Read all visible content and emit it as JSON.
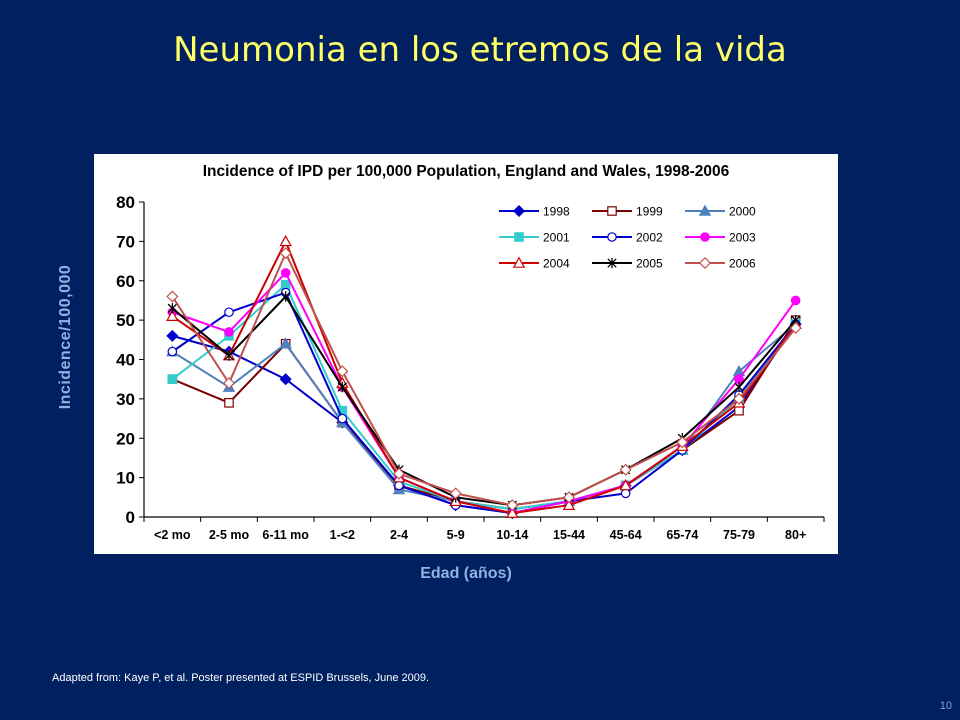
{
  "slide": {
    "title": "Neumonia en los etremos de la vida",
    "footnote": "Adapted from: Kaye P, et al. Poster presented at ESPID Brussels, June 2009.",
    "page_number": "10",
    "background_color": "#002060",
    "title_color": "#FFFF66",
    "label_color": "#8EB4E3"
  },
  "chart_data": {
    "type": "line",
    "title": "Incidence of IPD per 100,000 Population, England and Wales, 1998-2006",
    "xlabel": "Edad (años)",
    "ylabel": "Incidence/100,000",
    "ylim": [
      0,
      80
    ],
    "yticks": [
      0,
      10,
      20,
      30,
      40,
      50,
      60,
      70,
      80
    ],
    "grid": false,
    "legend_position": "top-right",
    "categories": [
      "<2 mo",
      "2-5 mo",
      "6-11 mo",
      "1-<2",
      "2-4",
      "5-9",
      "10-14",
      "15-44",
      "45-64",
      "65-74",
      "75-79",
      "80+"
    ],
    "series": [
      {
        "name": "1998",
        "color": "#0000CC",
        "marker": "diamond-filled",
        "values": [
          46,
          42,
          35,
          24,
          8,
          3,
          1,
          4,
          8,
          17,
          28,
          49
        ]
      },
      {
        "name": "1999",
        "color": "#7B0000",
        "marker": "square-open",
        "values": [
          35,
          29,
          44,
          24,
          8,
          4,
          2,
          4,
          8,
          17,
          27,
          50
        ]
      },
      {
        "name": "2000",
        "color": "#4F81BD",
        "marker": "triangle-filled",
        "values": [
          42,
          33,
          44,
          24,
          7,
          4,
          2,
          4,
          8,
          17,
          37,
          49
        ]
      },
      {
        "name": "2001",
        "color": "#33CCCC",
        "marker": "square-filled",
        "values": [
          35,
          46,
          59,
          27,
          9,
          4,
          2,
          4,
          8,
          17,
          30,
          49
        ]
      },
      {
        "name": "2002",
        "color": "#0000CC",
        "marker": "circle-open",
        "values": [
          42,
          52,
          57,
          25,
          8,
          3,
          1,
          4,
          6,
          17,
          31,
          49
        ]
      },
      {
        "name": "2003",
        "color": "#FF00FF",
        "marker": "circle-filled",
        "values": [
          52,
          47,
          62,
          33,
          10,
          4,
          1,
          4,
          8,
          18,
          35,
          55
        ]
      },
      {
        "name": "2004",
        "color": "#CC0000",
        "marker": "triangle-open",
        "values": [
          51,
          41,
          70,
          34,
          10,
          4,
          1,
          3,
          8,
          18,
          29,
          49
        ]
      },
      {
        "name": "2005",
        "color": "#000000",
        "marker": "star",
        "values": [
          53,
          41,
          56,
          33,
          12,
          5,
          3,
          5,
          12,
          20,
          33,
          50
        ]
      },
      {
        "name": "2006",
        "color": "#C0504D",
        "marker": "diamond-open",
        "values": [
          56,
          34,
          67,
          37,
          11,
          6,
          3,
          5,
          12,
          19,
          30,
          48
        ]
      }
    ]
  }
}
